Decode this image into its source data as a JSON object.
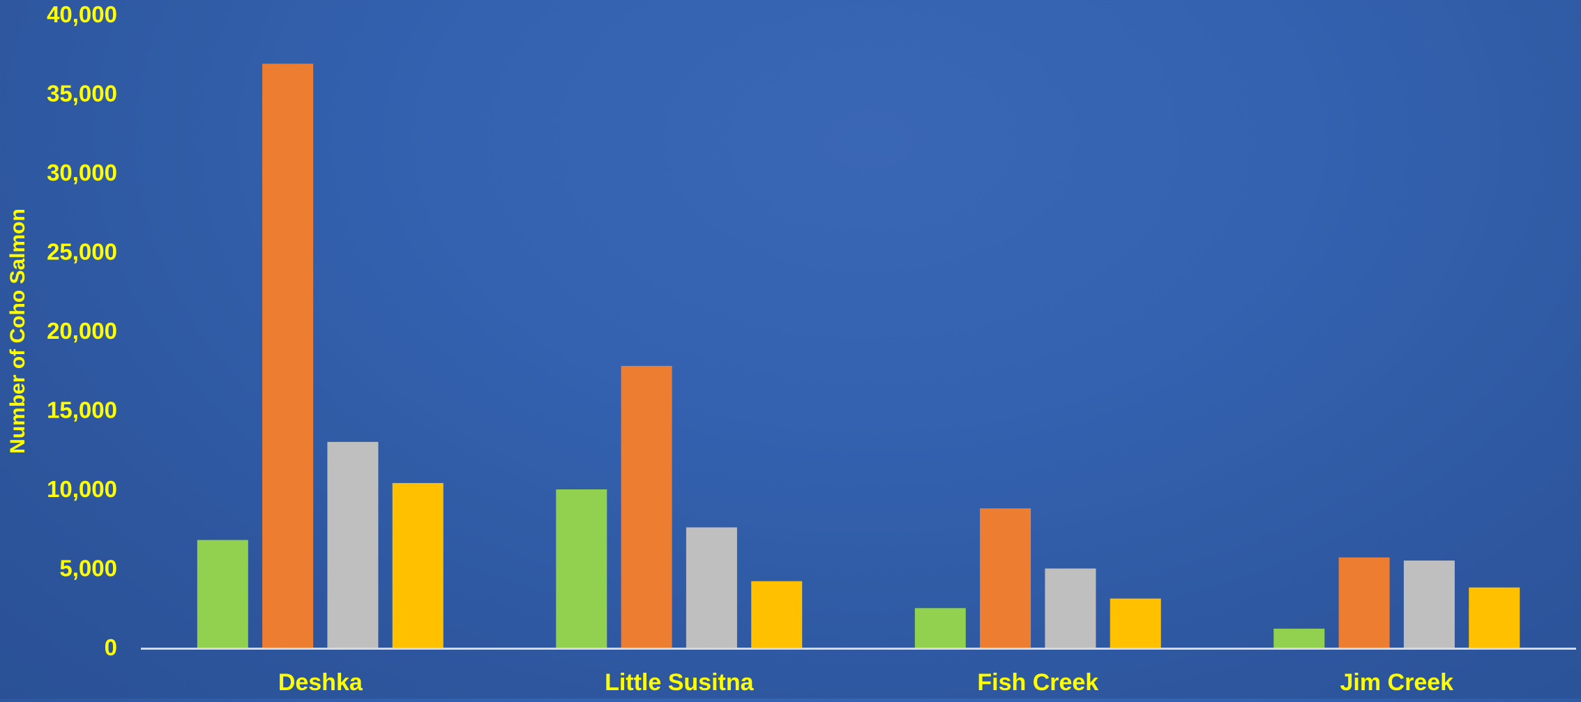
{
  "chart_data": {
    "type": "bar",
    "title": "",
    "xlabel": "",
    "ylabel": "Number of Coho Salmon",
    "ylim": [
      0,
      40000
    ],
    "yticks": [
      0,
      5000,
      10000,
      15000,
      20000,
      25000,
      30000,
      35000,
      40000
    ],
    "ytick_labels": [
      "0",
      "5,000",
      "10,000",
      "15,000",
      "20,000",
      "25,000",
      "30,000",
      "35,000",
      "40,000"
    ],
    "categories": [
      "Deshka",
      "Little Susitna",
      "Fish Creek",
      "Jim Creek"
    ],
    "series": [
      {
        "color": "#92d050",
        "values": [
          6800,
          10000,
          2500,
          1200
        ]
      },
      {
        "color": "#ed7d31",
        "values": [
          36900,
          17800,
          8800,
          5700
        ]
      },
      {
        "color": "#bfbfbf",
        "values": [
          13000,
          7600,
          5000,
          5500
        ]
      },
      {
        "color": "#ffc000",
        "values": [
          10400,
          4200,
          3100,
          3800
        ]
      }
    ],
    "grid": false,
    "legend": "none",
    "colors": {
      "text": "#ffff00",
      "axis_line": "#d9d9d9"
    }
  }
}
